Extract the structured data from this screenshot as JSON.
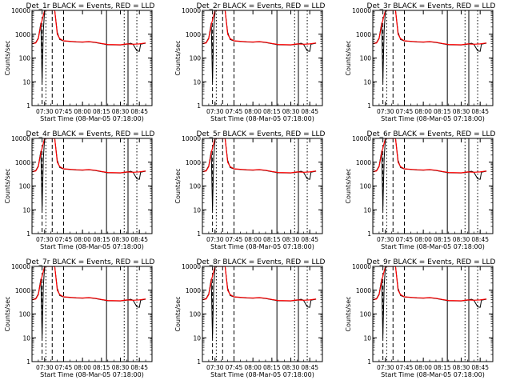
{
  "chart_data": {
    "type": "line",
    "x_unit": "time (HH:MM)",
    "x_ticks": [
      "07:30",
      "07:45",
      "08:00",
      "08:15",
      "08:30",
      "08:45"
    ],
    "x_range": [
      "07:20",
      "08:55"
    ],
    "y_scale": "log",
    "ylim": [
      1,
      10000
    ],
    "y_ticks": [
      "1",
      "10",
      "100",
      "1000",
      "10000"
    ],
    "ylabel": "Counts/sec",
    "xlabel": "Start Time (08-Mar-05 07:18:00)",
    "series_colors": {
      "events": "#000000",
      "lld": "#ff0000"
    },
    "vlines": {
      "dashed": [
        "07:28",
        "07:36",
        "07:45"
      ],
      "dotted": [
        "07:31",
        "08:33",
        "08:43"
      ],
      "solid": [
        "08:19",
        "08:36"
      ]
    },
    "panels": [
      {
        "title": "Det_1r BLACK = Events, RED = LLD"
      },
      {
        "title": "Det_2r BLACK = Events, RED = LLD"
      },
      {
        "title": "Det_3r BLACK = Events, RED = LLD"
      },
      {
        "title": "Det_4r BLACK = Events, RED = LLD"
      },
      {
        "title": "Det_5r BLACK = Events, RED = LLD"
      },
      {
        "title": "Det_6r BLACK = Events, RED = LLD"
      },
      {
        "title": "Det_7r BLACK = Events, RED = LLD"
      },
      {
        "title": "Det_8r BLACK = Events, RED = LLD"
      },
      {
        "title": "Det_9r BLACK = Events, RED = LLD"
      }
    ],
    "series": [
      {
        "key": "events",
        "points": [
          [
            "07:20",
            400
          ],
          [
            "07:23",
            450
          ],
          [
            "07:25",
            700
          ],
          [
            "07:27",
            3000
          ],
          [
            "07:28",
            10
          ],
          [
            "07:29",
            1500
          ],
          [
            "07:30",
            10000
          ],
          [
            "07:38",
            10000
          ],
          [
            "07:40",
            1200
          ],
          [
            "07:42",
            600
          ],
          [
            "07:45",
            520
          ],
          [
            "07:55",
            470
          ],
          [
            "08:00",
            460
          ],
          [
            "08:05",
            480
          ],
          [
            "08:10",
            450
          ],
          [
            "08:15",
            400
          ],
          [
            "08:20",
            360
          ],
          [
            "08:30",
            350
          ],
          [
            "08:35",
            380
          ],
          [
            "08:38",
            420
          ],
          [
            "08:40",
            380
          ],
          [
            "08:43",
            200
          ],
          [
            "08:45",
            190
          ],
          [
            "08:46",
            380
          ],
          [
            "08:50",
            420
          ]
        ]
      },
      {
        "key": "lld",
        "points": [
          [
            "07:20",
            400
          ],
          [
            "07:23",
            430
          ],
          [
            "07:25",
            650
          ],
          [
            "07:27",
            2500
          ],
          [
            "07:30",
            10000
          ],
          [
            "07:38",
            10000
          ],
          [
            "07:40",
            1000
          ],
          [
            "07:42",
            650
          ],
          [
            "07:45",
            530
          ],
          [
            "07:55",
            480
          ],
          [
            "08:00",
            470
          ],
          [
            "08:05",
            490
          ],
          [
            "08:10",
            460
          ],
          [
            "08:15",
            410
          ],
          [
            "08:20",
            370
          ],
          [
            "08:30",
            360
          ],
          [
            "08:35",
            390
          ],
          [
            "08:40",
            380
          ],
          [
            "08:45",
            390
          ],
          [
            "08:50",
            430
          ]
        ]
      }
    ]
  }
}
